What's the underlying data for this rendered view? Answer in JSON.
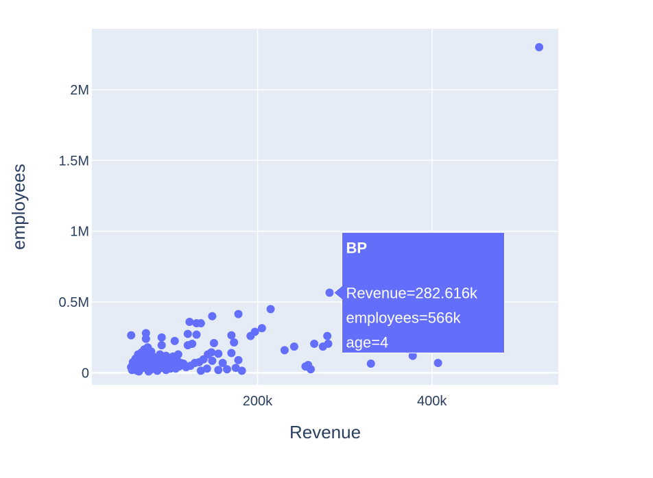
{
  "chart_data": {
    "type": "scatter",
    "xlabel": "Revenue",
    "ylabel": "employees",
    "xlim": [
      10000,
      545000
    ],
    "ylim": [
      -85000,
      2430000
    ],
    "x_ticks": [
      {
        "value": 200000,
        "label": "200k"
      },
      {
        "value": 400000,
        "label": "400k"
      }
    ],
    "y_ticks": [
      {
        "value": 0,
        "label": "0"
      },
      {
        "value": 500000,
        "label": "0.5M"
      },
      {
        "value": 1000000,
        "label": "1M"
      },
      {
        "value": 1500000,
        "label": "1.5M"
      },
      {
        "value": 2000000,
        "label": "2M"
      }
    ],
    "grid": true,
    "marker_color": "#636efa",
    "background_color": "#e5ecf6",
    "series": [
      {
        "points": [
          [
            523000,
            2300000
          ],
          [
            282616,
            566000
          ],
          [
            215000,
            450000
          ],
          [
            178000,
            415000
          ],
          [
            148000,
            400000
          ],
          [
            122000,
            360000
          ],
          [
            130000,
            350000
          ],
          [
            135000,
            350000
          ],
          [
            205000,
            315000
          ],
          [
            197000,
            290000
          ],
          [
            192000,
            260000
          ],
          [
            170000,
            265000
          ],
          [
            130000,
            270000
          ],
          [
            120000,
            275000
          ],
          [
            72000,
            280000
          ],
          [
            55000,
            265000
          ],
          [
            90000,
            250000
          ],
          [
            280000,
            260000
          ],
          [
            275000,
            185000
          ],
          [
            281000,
            205000
          ],
          [
            265000,
            205000
          ],
          [
            242000,
            185000
          ],
          [
            231000,
            160000
          ],
          [
            173000,
            215000
          ],
          [
            150000,
            210000
          ],
          [
            125000,
            205000
          ],
          [
            120000,
            195000
          ],
          [
            105000,
            225000
          ],
          [
            90000,
            195000
          ],
          [
            72000,
            240000
          ],
          [
            147000,
            145000
          ],
          [
            155000,
            135000
          ],
          [
            143000,
            130000
          ],
          [
            170000,
            140000
          ],
          [
            178000,
            90000
          ],
          [
            160000,
            70000
          ],
          [
            148000,
            85000
          ],
          [
            138000,
            95000
          ],
          [
            133000,
            75000
          ],
          [
            128000,
            70000
          ],
          [
            123000,
            50000
          ],
          [
            115000,
            65000
          ],
          [
            110000,
            45000
          ],
          [
            100000,
            30000
          ],
          [
            95000,
            20000
          ],
          [
            85000,
            15000
          ],
          [
            75000,
            10000
          ],
          [
            65000,
            25000
          ],
          [
            58000,
            30000
          ],
          [
            55000,
            40000
          ],
          [
            62000,
            60000
          ],
          [
            68000,
            70000
          ],
          [
            72000,
            80000
          ],
          [
            78000,
            95000
          ],
          [
            82000,
            110000
          ],
          [
            88000,
            130000
          ],
          [
            95000,
            120000
          ],
          [
            102000,
            100000
          ],
          [
            108000,
            85000
          ],
          [
            112000,
            70000
          ],
          [
            60000,
            100000
          ],
          [
            63000,
            130000
          ],
          [
            67000,
            145000
          ],
          [
            70000,
            165000
          ],
          [
            74000,
            180000
          ],
          [
            78000,
            150000
          ],
          [
            81000,
            60000
          ],
          [
            86000,
            40000
          ],
          [
            92000,
            55000
          ],
          [
            98000,
            75000
          ],
          [
            104000,
            55000
          ],
          [
            118000,
            40000
          ],
          [
            142000,
            30000
          ],
          [
            155000,
            20000
          ],
          [
            165000,
            25000
          ],
          [
            175000,
            35000
          ],
          [
            182000,
            15000
          ],
          [
            135000,
            15000
          ],
          [
            255000,
            45000
          ],
          [
            258000,
            55000
          ],
          [
            261000,
            25000
          ],
          [
            330000,
            65000
          ],
          [
            378000,
            120000
          ],
          [
            407000,
            70000
          ],
          [
            56000,
            20000
          ],
          [
            59000,
            50000
          ],
          [
            64000,
            10000
          ],
          [
            69000,
            35000
          ],
          [
            73000,
            55000
          ],
          [
            77000,
            20000
          ],
          [
            83000,
            75000
          ],
          [
            87000,
            95000
          ],
          [
            91000,
            35000
          ],
          [
            96000,
            105000
          ],
          [
            101000,
            65000
          ],
          [
            106000,
            30000
          ],
          [
            57000,
            75000
          ],
          [
            61000,
            90000
          ],
          [
            66000,
            115000
          ],
          [
            71000,
            125000
          ],
          [
            76000,
            130000
          ],
          [
            80000,
            85000
          ],
          [
            84000,
            50000
          ],
          [
            89000,
            70000
          ],
          [
            93000,
            90000
          ],
          [
            99000,
            45000
          ],
          [
            62000,
            15000
          ],
          [
            79000,
            40000
          ],
          [
            103000,
            115000
          ],
          [
            109000,
            130000
          ]
        ]
      }
    ]
  },
  "tooltip": {
    "title": "BP",
    "lines": [
      "Revenue=282.616k",
      "employees=566k",
      "age=4"
    ],
    "anchor": [
      282616,
      566000
    ]
  }
}
